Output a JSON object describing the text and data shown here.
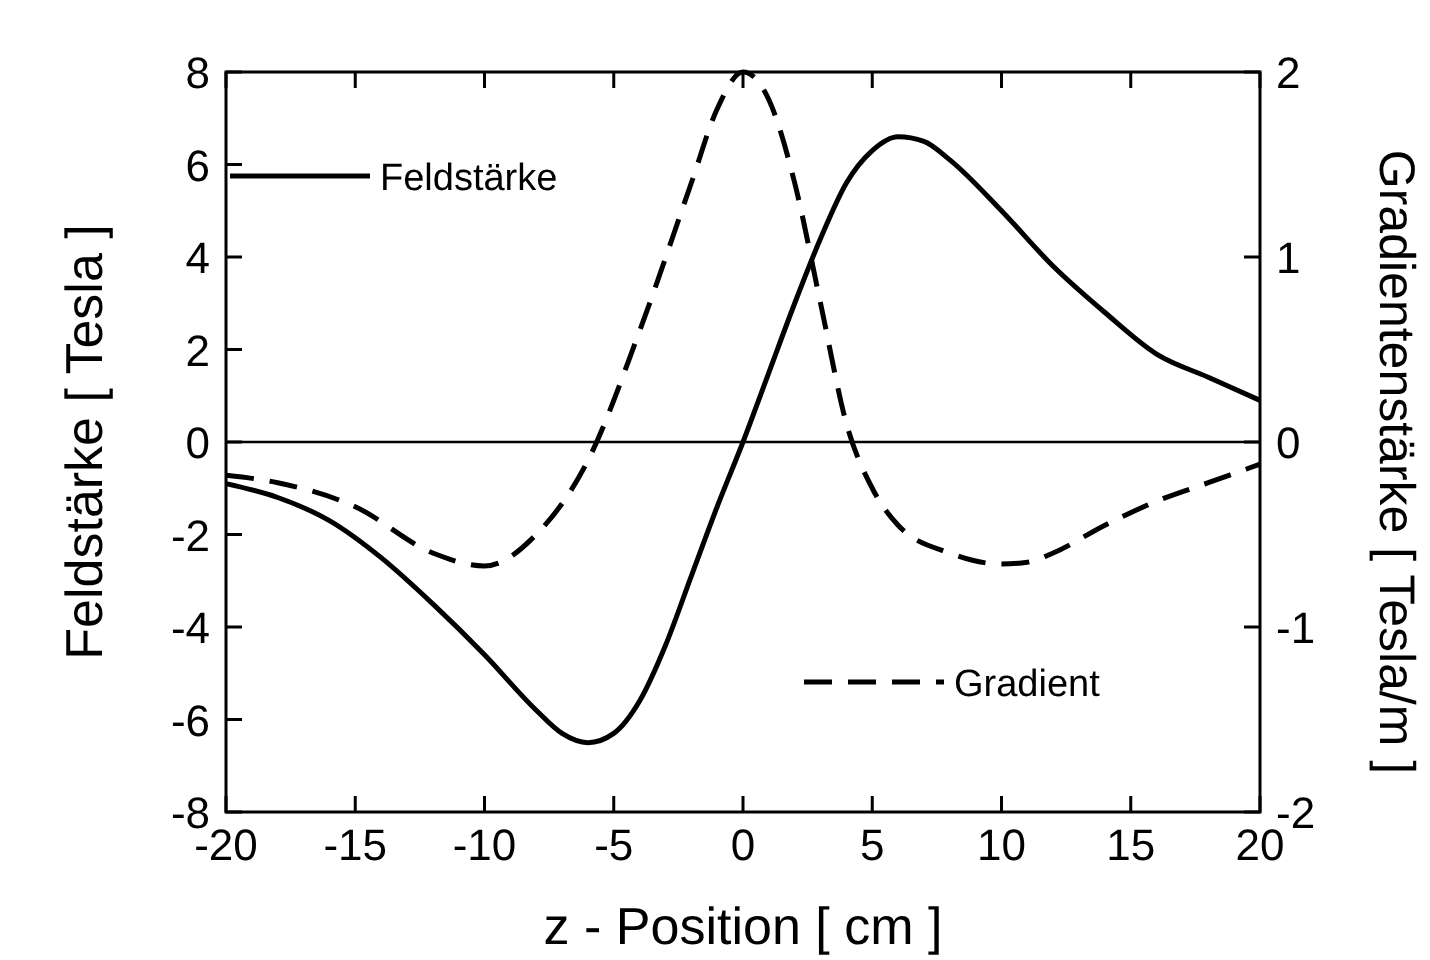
{
  "chart_data": {
    "type": "line",
    "xlabel": "z - Position [ cm ]",
    "ylabel": "Feldstärke [ Tesla ]",
    "y2label": "Gradientenstärke [ Tesla/m ]",
    "xlim": [
      -20,
      20
    ],
    "xticks": [
      -20,
      -15,
      -10,
      -5,
      0,
      5,
      10,
      15,
      20
    ],
    "ylim": [
      -8,
      8
    ],
    "yticks": [
      -8,
      -6,
      -4,
      -2,
      0,
      2,
      4,
      6,
      8
    ],
    "y2lim": [
      -2,
      2
    ],
    "y2ticks": [
      -2,
      -1,
      0,
      1,
      2
    ],
    "legend": "left",
    "ref_lines": [
      {
        "axis": "y",
        "value": 0,
        "color": "#000000",
        "line_style": "solid"
      }
    ],
    "series": [
      {
        "name": "Feldstärke",
        "color": "#000000",
        "line_style": "solid",
        "x": [
          -20,
          -18,
          -16,
          -14,
          -12,
          -10,
          -8,
          -7,
          -6,
          -5,
          -4,
          -3,
          -2,
          -1,
          0,
          1,
          2,
          3,
          4,
          5,
          6,
          7,
          8,
          10,
          12,
          14,
          16,
          18,
          20
        ],
        "values": [
          -0.9,
          -1.2,
          -1.7,
          -2.5,
          -3.5,
          -4.6,
          -5.8,
          -6.3,
          -6.5,
          -6.3,
          -5.6,
          -4.4,
          -2.9,
          -1.4,
          0,
          1.5,
          3.0,
          4.4,
          5.6,
          6.3,
          6.6,
          6.5,
          6.1,
          5.0,
          3.8,
          2.8,
          1.9,
          1.4,
          0.9
        ]
      },
      {
        "name": "Gradient",
        "color": "#000000",
        "line_style": "dashed",
        "axis": "y2",
        "x": [
          -20,
          -18,
          -15,
          -12,
          -10,
          -8,
          -6,
          -4,
          -2,
          -1,
          0,
          1,
          2,
          3,
          4,
          5,
          6,
          8,
          10,
          11,
          12,
          14,
          16,
          18,
          20
        ],
        "values": [
          -0.18,
          -0.22,
          -0.35,
          -0.6,
          -0.67,
          -0.5,
          -0.1,
          0.6,
          1.4,
          1.8,
          2.0,
          1.85,
          1.4,
          0.75,
          0.1,
          -0.25,
          -0.45,
          -0.6,
          -0.66,
          -0.65,
          -0.6,
          -0.45,
          -0.32,
          -0.22,
          -0.12
        ]
      }
    ]
  }
}
